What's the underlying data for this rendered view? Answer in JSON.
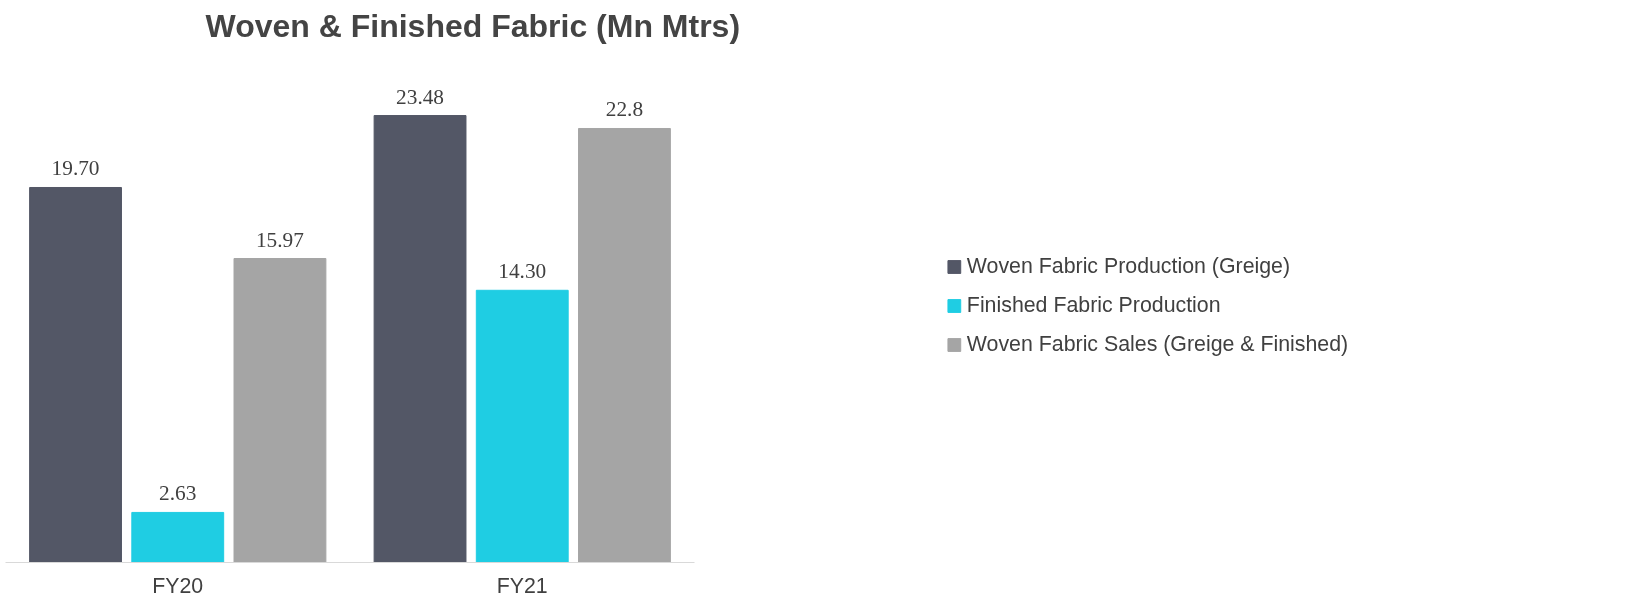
{
  "chart_data": {
    "type": "bar",
    "title": "Woven & Finished Fabric (Mn Mtrs)",
    "categories": [
      "FY20",
      "FY21"
    ],
    "series": [
      {
        "name": "Woven Fabric Production (Greige)",
        "color": "#535766",
        "values": [
          19.7,
          23.48
        ],
        "value_labels": [
          "19.70",
          "23.48"
        ]
      },
      {
        "name": "Finished Fabric Production",
        "color": "#1fcde3",
        "values": [
          2.63,
          14.3
        ],
        "value_labels": [
          "2.63",
          "14.30"
        ]
      },
      {
        "name": "Woven Fabric Sales (Greige & Finished)",
        "color": "#a5a5a5",
        "values": [
          15.97,
          22.8
        ],
        "value_labels": [
          "15.97",
          "22.8"
        ]
      }
    ],
    "legend": "right",
    "grid": false
  }
}
